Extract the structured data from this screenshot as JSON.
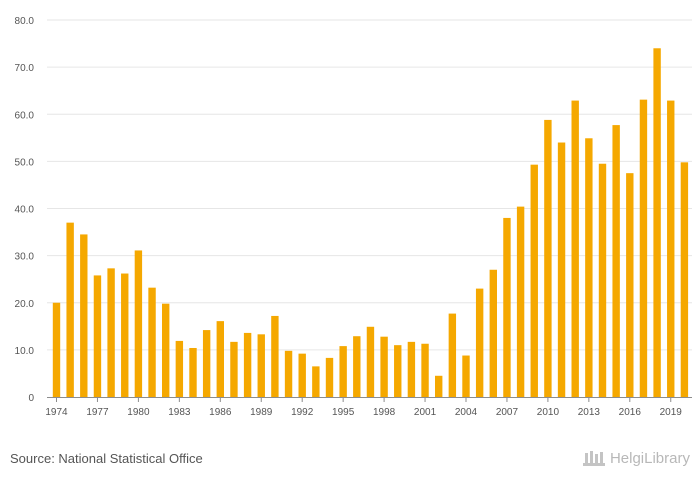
{
  "chart_data": {
    "type": "bar",
    "title": "",
    "xlabel": "",
    "ylabel": "",
    "ylim": [
      0,
      80
    ],
    "y_ticks": [
      "0",
      "10.0",
      "20.0",
      "30.0",
      "40.0",
      "50.0",
      "60.0",
      "70.0",
      "80.0"
    ],
    "x_tick_labels": [
      "1974",
      "1977",
      "1980",
      "1983",
      "1986",
      "1989",
      "1992",
      "1995",
      "1998",
      "2001",
      "2004",
      "2007",
      "2010",
      "2013",
      "2016",
      "2019"
    ],
    "grid": "horizontal",
    "bar_color": "#f5a800",
    "categories": [
      "1974",
      "1975",
      "1976",
      "1977",
      "1978",
      "1979",
      "1980",
      "1981",
      "1982",
      "1983",
      "1984",
      "1985",
      "1986",
      "1987",
      "1988",
      "1989",
      "1990",
      "1991",
      "1992",
      "1993",
      "1994",
      "1995",
      "1996",
      "1997",
      "1998",
      "1999",
      "2000",
      "2001",
      "2002",
      "2003",
      "2004",
      "2005",
      "2006",
      "2007",
      "2008",
      "2009",
      "2010",
      "2011",
      "2012",
      "2013",
      "2014",
      "2015",
      "2016",
      "2017",
      "2018",
      "2019",
      "2020"
    ],
    "values": [
      20.0,
      37.0,
      34.5,
      25.8,
      27.3,
      26.2,
      31.1,
      23.2,
      19.8,
      11.9,
      10.4,
      14.2,
      16.1,
      11.7,
      13.6,
      13.3,
      17.2,
      9.8,
      9.2,
      6.5,
      8.3,
      10.8,
      12.9,
      14.9,
      12.8,
      11.0,
      11.7,
      11.3,
      4.5,
      17.7,
      8.8,
      23.0,
      27.0,
      38.0,
      40.4,
      49.3,
      58.8,
      54.0,
      62.9,
      54.9,
      49.5,
      57.7,
      47.5,
      63.1,
      74.0,
      62.9,
      49.8
    ]
  },
  "footer": {
    "source": "Source: National Statistical Office",
    "brand": "HelgiLibrary"
  }
}
